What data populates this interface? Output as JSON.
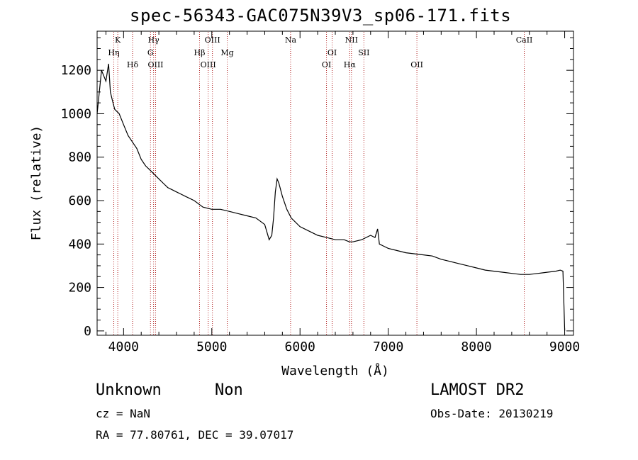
{
  "chart_data": {
    "type": "line",
    "title": "spec-56343-GAC075N39V3_sp06-171.fits",
    "xlabel": "Wavelength (Å)",
    "ylabel": "Flux (relative)",
    "xlim": [
      3700,
      9100
    ],
    "ylim": [
      -20,
      1380
    ],
    "xticks": [
      4000,
      5000,
      6000,
      7000,
      8000,
      9000
    ],
    "yticks": [
      0,
      200,
      400,
      600,
      800,
      1000,
      1200
    ],
    "grid": false,
    "legend": "none",
    "series": [
      {
        "color": "#000000",
        "x": [
          3700,
          3750,
          3800,
          3830,
          3850,
          3880,
          3900,
          3950,
          4000,
          4050,
          4100,
          4150,
          4200,
          4250,
          4300,
          4350,
          4400,
          4450,
          4500,
          4550,
          4600,
          4700,
          4800,
          4900,
          5000,
          5100,
          5200,
          5300,
          5400,
          5500,
          5600,
          5650,
          5680,
          5700,
          5720,
          5740,
          5760,
          5800,
          5850,
          5900,
          6000,
          6100,
          6200,
          6300,
          6400,
          6500,
          6560,
          6600,
          6700,
          6800,
          6850,
          6880,
          6900,
          6950,
          7000,
          7100,
          7200,
          7300,
          7400,
          7500,
          7600,
          7700,
          7800,
          7900,
          8000,
          8100,
          8200,
          8300,
          8400,
          8500,
          8600,
          8700,
          8800,
          8900,
          8950,
          8980,
          9000
        ],
        "y": [
          1000,
          1200,
          1150,
          1230,
          1100,
          1050,
          1020,
          1000,
          950,
          900,
          870,
          840,
          790,
          760,
          740,
          720,
          700,
          680,
          660,
          650,
          640,
          620,
          600,
          570,
          560,
          560,
          550,
          540,
          530,
          520,
          490,
          420,
          440,
          520,
          640,
          700,
          680,
          620,
          560,
          520,
          480,
          460,
          440,
          430,
          420,
          420,
          410,
          410,
          420,
          440,
          430,
          470,
          400,
          390,
          380,
          370,
          360,
          355,
          350,
          345,
          330,
          320,
          310,
          300,
          290,
          280,
          275,
          270,
          265,
          260,
          260,
          265,
          270,
          275,
          280,
          275,
          0
        ]
      }
    ],
    "line_markers": [
      {
        "name": "K",
        "x": 3934,
        "row": 0
      },
      {
        "name": "Hη",
        "x": 3889,
        "row": 1
      },
      {
        "name": "Hδ",
        "x": 4102,
        "row": 2
      },
      {
        "name": "Hγ",
        "x": 4340,
        "row": 0
      },
      {
        "name": "G",
        "x": 4305,
        "row": 1
      },
      {
        "name": "OIII",
        "x": 4363,
        "row": 2
      },
      {
        "name": "OIII",
        "x": 5007,
        "row": 0
      },
      {
        "name": "Hβ",
        "x": 4861,
        "row": 1
      },
      {
        "name": "OIII",
        "x": 4959,
        "row": 2
      },
      {
        "name": "Mg",
        "x": 5175,
        "row": 1
      },
      {
        "name": "Na",
        "x": 5893,
        "row": 0
      },
      {
        "name": "OI",
        "x": 6364,
        "row": 1
      },
      {
        "name": "OI",
        "x": 6300,
        "row": 2
      },
      {
        "name": "NII",
        "x": 6583,
        "row": 0
      },
      {
        "name": "SII",
        "x": 6724,
        "row": 1
      },
      {
        "name": "Hα",
        "x": 6563,
        "row": 2
      },
      {
        "name": "OII",
        "x": 7325,
        "row": 2
      },
      {
        "name": "CaII",
        "x": 8542,
        "row": 0
      }
    ]
  },
  "info": {
    "class_label": "Unknown",
    "subclass_label": "Non",
    "cz": "cz = NaN",
    "coords": "RA =  77.80761, DEC =  39.07017",
    "survey": "LAMOST DR2",
    "obs_date": "Obs-Date: 20130219"
  }
}
